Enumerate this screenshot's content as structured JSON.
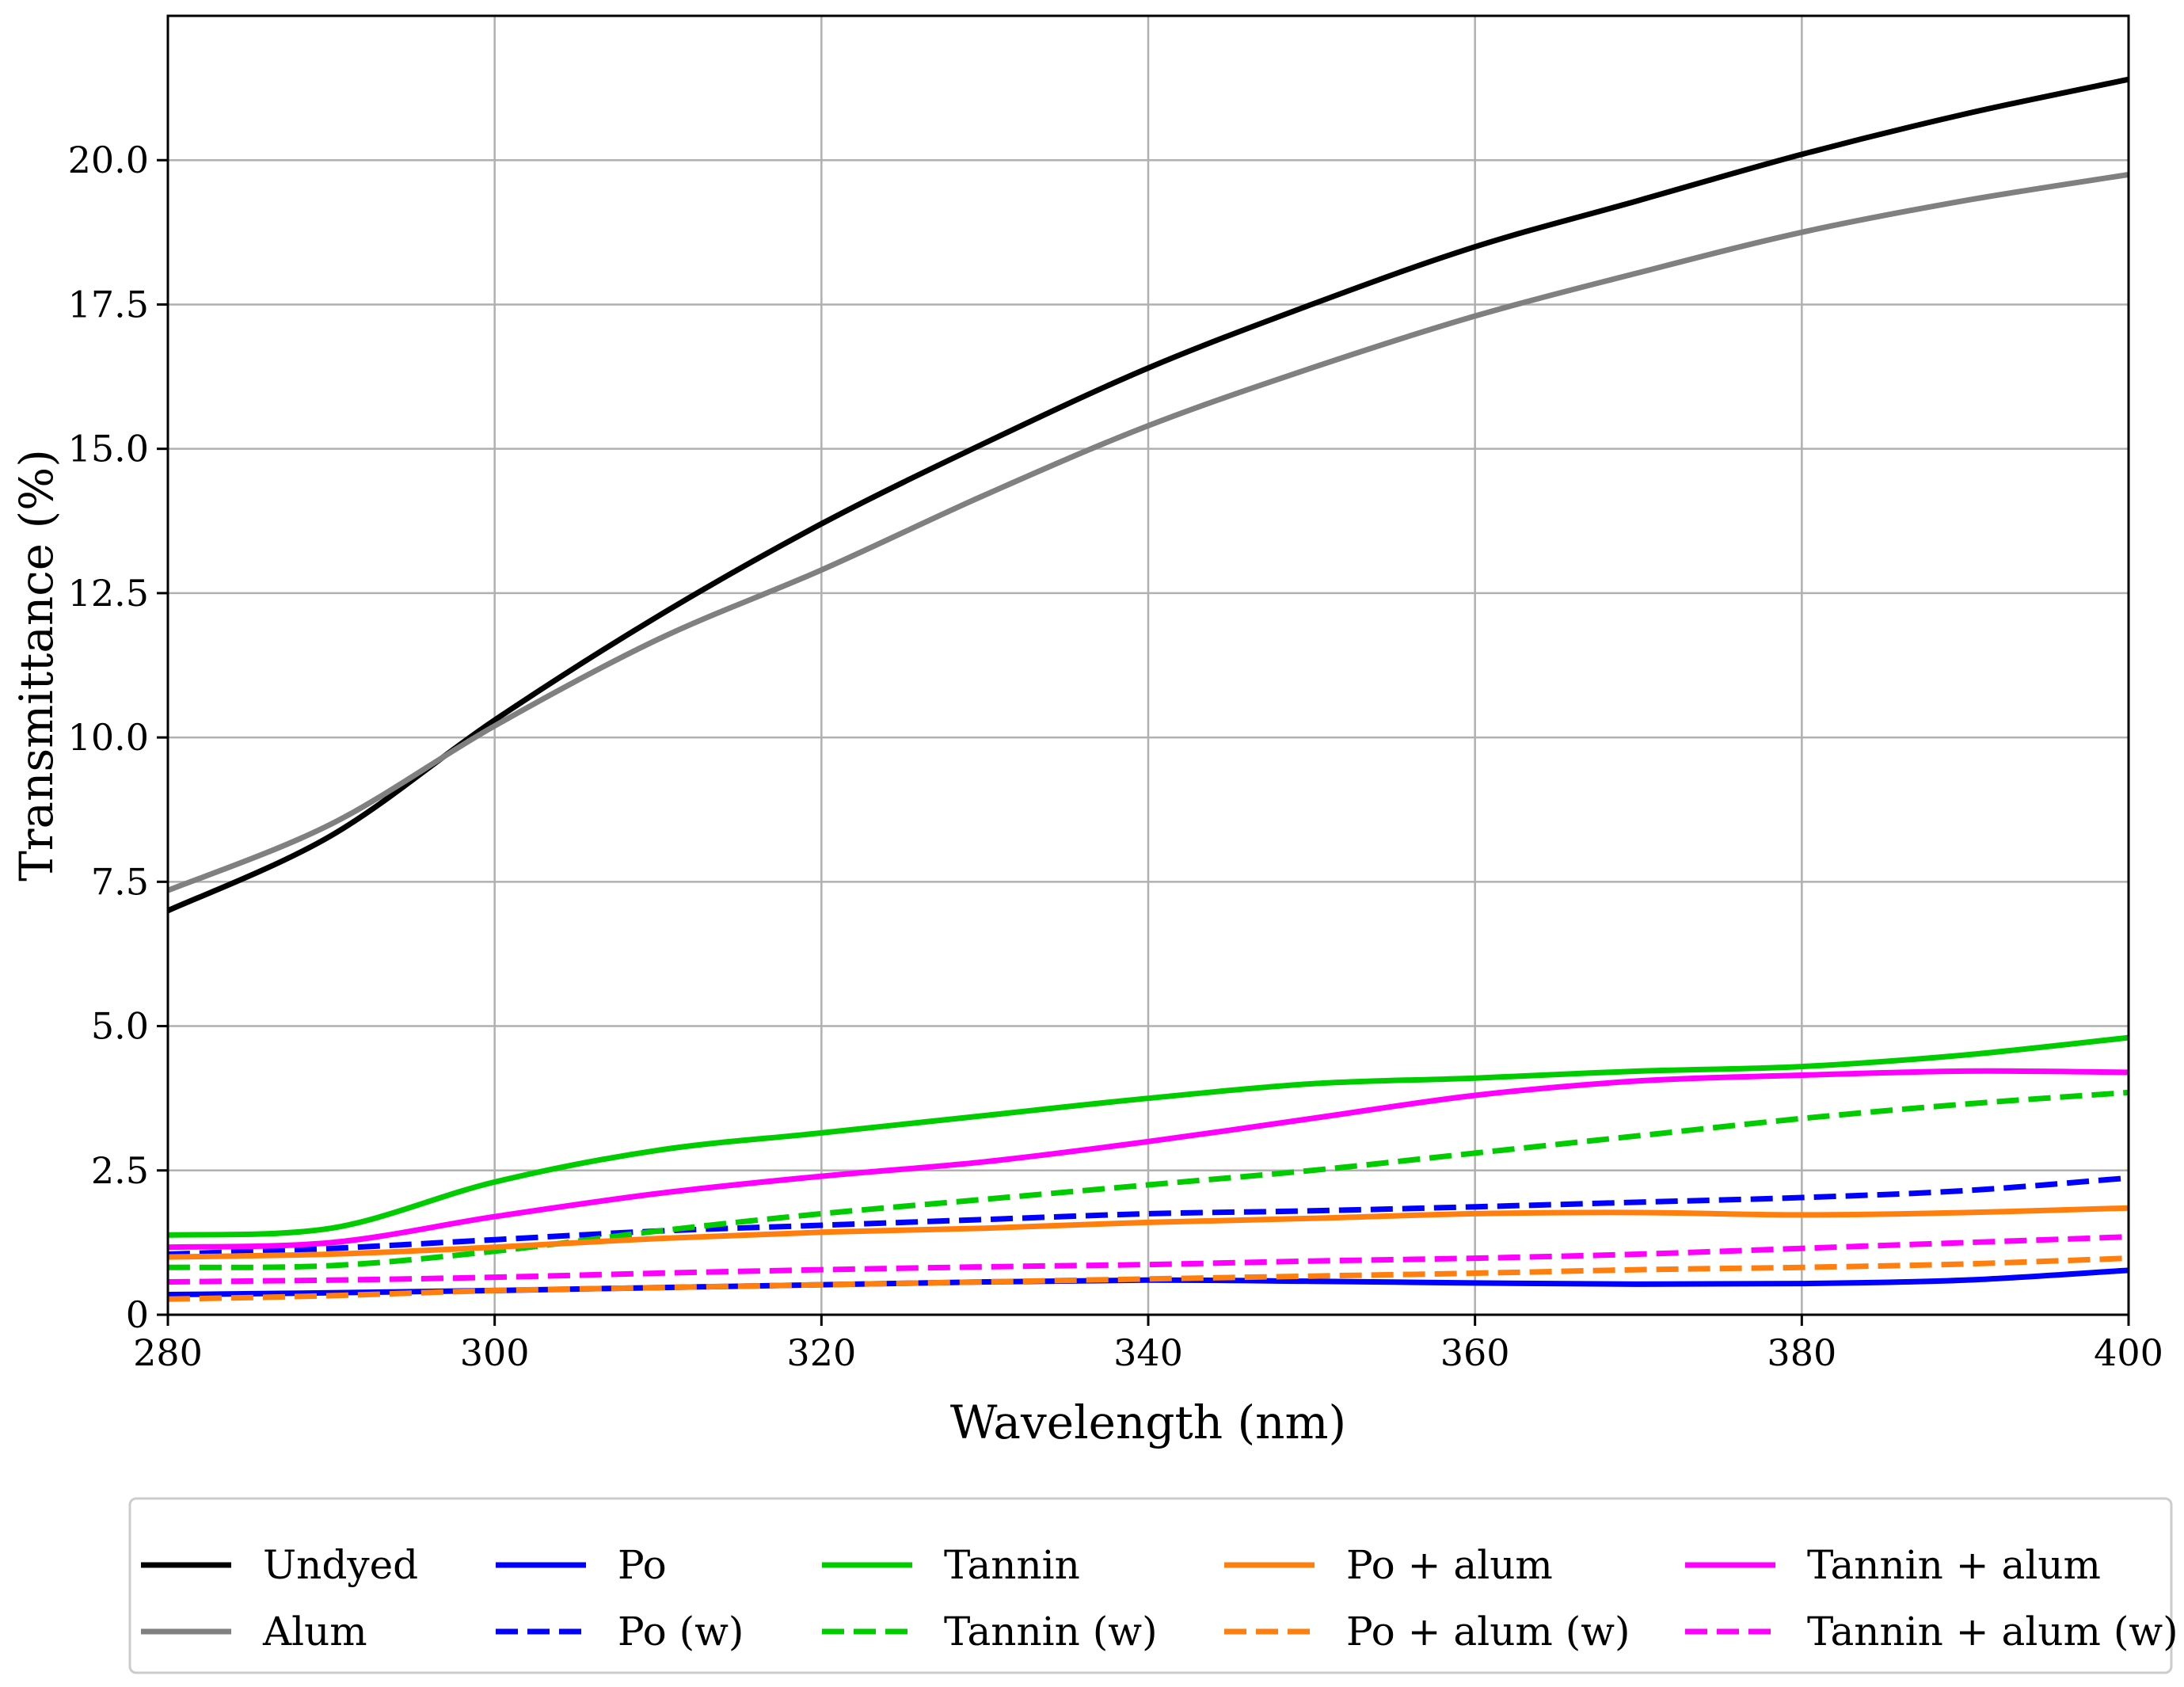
{
  "chart_data": {
    "type": "line",
    "title": "",
    "xlabel": "Wavelength (nm)",
    "ylabel": "Transmittance (%)",
    "xlim": [
      280,
      400
    ],
    "ylim": [
      0,
      22.5
    ],
    "xticks": [
      280,
      300,
      320,
      340,
      360,
      380,
      400
    ],
    "xtick_labels": [
      "280",
      "300",
      "320",
      "340",
      "360",
      "380",
      "400"
    ],
    "yticks": [
      0,
      2.5,
      5.0,
      7.5,
      10.0,
      12.5,
      15.0,
      17.5,
      20.0
    ],
    "ytick_labels": [
      "0",
      "2.5",
      "5.0",
      "7.5",
      "10.0",
      "12.5",
      "15.0",
      "17.5",
      "20.0"
    ],
    "grid": true,
    "legend_placement": "below the plot, 5 columns",
    "x": [
      280,
      290,
      300,
      310,
      320,
      330,
      340,
      350,
      360,
      370,
      380,
      390,
      400
    ],
    "series": [
      {
        "name": "Undyed",
        "color": "#000000",
        "style": "solid",
        "legend_col": 0,
        "legend_row": 0,
        "values": [
          7.0,
          8.3,
          10.3,
          12.1,
          13.7,
          15.1,
          16.4,
          17.5,
          18.5,
          19.3,
          20.1,
          20.8,
          21.4
        ]
      },
      {
        "name": "Alum",
        "color": "#808080",
        "style": "solid",
        "legend_col": 0,
        "legend_row": 1,
        "values": [
          7.35,
          8.5,
          10.2,
          11.7,
          12.9,
          14.2,
          15.4,
          16.4,
          17.3,
          18.05,
          18.75,
          19.3,
          19.75
        ]
      },
      {
        "name": "Po",
        "color": "#0000ff",
        "style": "solid",
        "legend_col": 1,
        "legend_row": 0,
        "values": [
          0.35,
          0.38,
          0.42,
          0.47,
          0.52,
          0.57,
          0.6,
          0.58,
          0.55,
          0.53,
          0.54,
          0.6,
          0.77
        ]
      },
      {
        "name": "Po (w)",
        "color": "#0000ff",
        "style": "dashed",
        "legend_col": 1,
        "legend_row": 1,
        "values": [
          1.05,
          1.15,
          1.3,
          1.45,
          1.55,
          1.65,
          1.75,
          1.8,
          1.87,
          1.95,
          2.03,
          2.15,
          2.37
        ]
      },
      {
        "name": "Tannin",
        "color": "#00cc00",
        "style": "solid",
        "legend_col": 2,
        "legend_row": 0,
        "values": [
          1.38,
          1.5,
          2.3,
          2.85,
          3.15,
          3.45,
          3.75,
          4.0,
          4.1,
          4.22,
          4.3,
          4.5,
          4.8
        ]
      },
      {
        "name": "Tannin (w)",
        "color": "#00cc00",
        "style": "dashed",
        "legend_col": 2,
        "legend_row": 1,
        "values": [
          0.82,
          0.85,
          1.1,
          1.45,
          1.75,
          2.0,
          2.25,
          2.5,
          2.8,
          3.1,
          3.4,
          3.65,
          3.85
        ]
      },
      {
        "name": "Po + alum",
        "color": "#ff7f0e",
        "style": "solid",
        "legend_col": 3,
        "legend_row": 0,
        "values": [
          1.0,
          1.05,
          1.17,
          1.32,
          1.43,
          1.5,
          1.6,
          1.67,
          1.75,
          1.77,
          1.73,
          1.77,
          1.85
        ]
      },
      {
        "name": "Po + alum (w)",
        "color": "#ff7f0e",
        "style": "dashed",
        "legend_col": 3,
        "legend_row": 1,
        "values": [
          0.27,
          0.33,
          0.42,
          0.47,
          0.52,
          0.57,
          0.62,
          0.67,
          0.72,
          0.78,
          0.82,
          0.88,
          0.98
        ]
      },
      {
        "name": "Tannin + alum",
        "color": "#ff00ff",
        "style": "solid",
        "legend_col": 4,
        "legend_row": 0,
        "values": [
          1.17,
          1.25,
          1.7,
          2.1,
          2.4,
          2.65,
          3.0,
          3.4,
          3.8,
          4.05,
          4.15,
          4.22,
          4.2
        ]
      },
      {
        "name": "Tannin + alum (w)",
        "color": "#ff00ff",
        "style": "dashed",
        "legend_col": 4,
        "legend_row": 1,
        "values": [
          0.57,
          0.6,
          0.65,
          0.72,
          0.78,
          0.83,
          0.87,
          0.93,
          0.98,
          1.05,
          1.15,
          1.25,
          1.35
        ]
      }
    ]
  }
}
